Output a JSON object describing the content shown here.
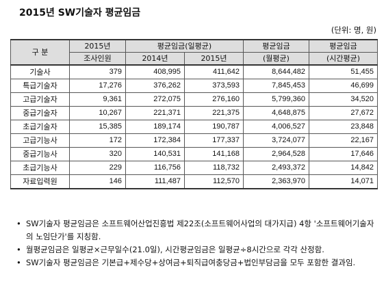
{
  "title": "2015년 SW기술자 평균임금",
  "unit": "(단위: 명, 원)",
  "table": {
    "headers": {
      "category": "구 분",
      "count_line1": "2015년",
      "count_line2": "조사인원",
      "daily_group": "평균임금(일평균)",
      "year_2014": "2014년",
      "year_2015": "2015년",
      "monthly_line1": "평균임금",
      "monthly_line2": "(월평균)",
      "hourly_line1": "평균임금",
      "hourly_line2": "(시간평균)"
    },
    "rows": [
      {
        "category": "기술사",
        "count": "379",
        "y2014": "408,995",
        "y2015": "411,642",
        "monthly": "8,644,482",
        "hourly": "51,455"
      },
      {
        "category": "특급기술자",
        "count": "17,276",
        "y2014": "376,262",
        "y2015": "373,593",
        "monthly": "7,845,453",
        "hourly": "46,699"
      },
      {
        "category": "고급기술자",
        "count": "9,361",
        "y2014": "272,075",
        "y2015": "276,160",
        "monthly": "5,799,360",
        "hourly": "34,520"
      },
      {
        "category": "중급기술자",
        "count": "10,267",
        "y2014": "221,371",
        "y2015": "221,375",
        "monthly": "4,648,875",
        "hourly": "27,672"
      },
      {
        "category": "초급기술자",
        "count": "15,385",
        "y2014": "189,174",
        "y2015": "190,787",
        "monthly": "4,006,527",
        "hourly": "23,848"
      },
      {
        "category": "고급기능사",
        "count": "172",
        "y2014": "172,384",
        "y2015": "177,337",
        "monthly": "3,724,077",
        "hourly": "22,167"
      },
      {
        "category": "중급기능사",
        "count": "320",
        "y2014": "140,531",
        "y2015": "141,168",
        "monthly": "2,964,528",
        "hourly": "17,646"
      },
      {
        "category": "초급기능사",
        "count": "229",
        "y2014": "116,756",
        "y2015": "118,732",
        "monthly": "2,493,372",
        "hourly": "14,842"
      },
      {
        "category": "자료입력원",
        "count": "146",
        "y2014": "111,487",
        "y2015": "112,570",
        "monthly": "2,363,970",
        "hourly": "14,071"
      }
    ]
  },
  "notes": [
    {
      "bullet": "•",
      "text": "SW기술자 평균임금은 소프트웨어산업진흥법 제22조(소프트웨어사업의 대가지급) 4항 '소프트웨어기술자의 노임단가'를 지칭함."
    },
    {
      "bullet": "•",
      "text": "월평균임금은 일평균×근무일수(21.0일), 시간평균임금은 일평균÷8시간으로 각각 산정함."
    },
    {
      "bullet": "•",
      "text": "SW기술자 평균임금은 기본급+제수당+상여금+퇴직급여충당금+법인부담금을 모두 포함한 결과임."
    }
  ]
}
